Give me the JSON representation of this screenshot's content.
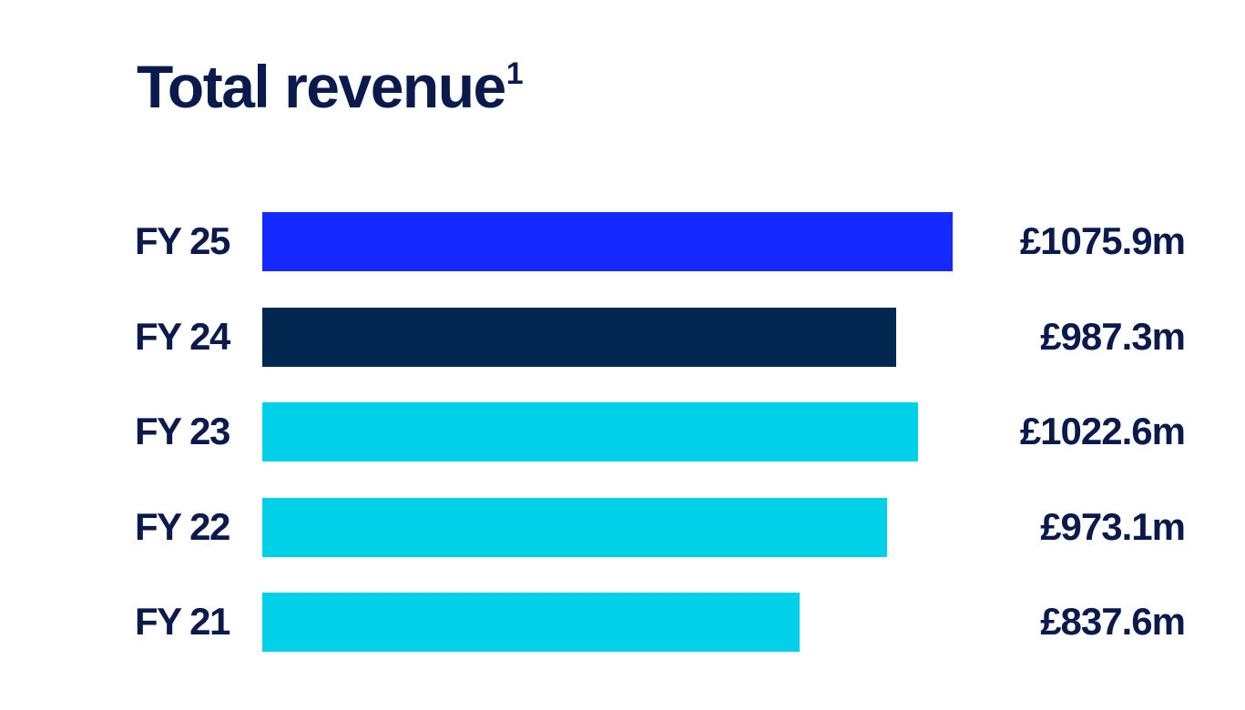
{
  "colors": {
    "text": "#0b1a4d",
    "highlight": "#1428ff",
    "previous": "#022852",
    "history": "#00d0e8"
  },
  "chart_data": {
    "type": "bar",
    "orientation": "horizontal",
    "title": "Total revenue",
    "title_superscript": "1",
    "xlabel": "",
    "ylabel": "",
    "grid": false,
    "legend": "none",
    "xlim": [
      0,
      1076
    ],
    "categories": [
      "FY 25",
      "FY 24",
      "FY 23",
      "FY 22",
      "FY 21"
    ],
    "values": [
      1075.9,
      987.3,
      1022.6,
      973.1,
      837.6
    ],
    "value_labels": [
      "£1075.9m",
      "£987.3m",
      "£1022.6m",
      "£973.1m",
      "£837.6m"
    ],
    "bar_colors": [
      "#1428ff",
      "#022852",
      "#00d0e8",
      "#00d0e8",
      "#00d0e8"
    ]
  }
}
